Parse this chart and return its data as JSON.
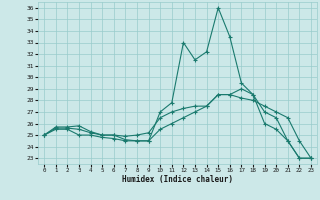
{
  "xlabel": "Humidex (Indice chaleur)",
  "bg_color": "#cce8e8",
  "grid_color": "#99cccc",
  "line_color": "#1a7a6e",
  "xlim": [
    -0.5,
    23.5
  ],
  "ylim": [
    22.5,
    36.5
  ],
  "yticks": [
    23,
    24,
    25,
    26,
    27,
    28,
    29,
    30,
    31,
    32,
    33,
    34,
    35,
    36
  ],
  "xticks": [
    0,
    1,
    2,
    3,
    4,
    5,
    6,
    7,
    8,
    9,
    10,
    11,
    12,
    13,
    14,
    15,
    16,
    17,
    18,
    19,
    20,
    21,
    22,
    23
  ],
  "line1_x": [
    0,
    1,
    2,
    3,
    4,
    5,
    6,
    7,
    8,
    9,
    10,
    11,
    12,
    13,
    14,
    15,
    16,
    17,
    18,
    19,
    20,
    21,
    22,
    23
  ],
  "line1_y": [
    25.0,
    25.6,
    25.6,
    25.5,
    25.2,
    25.0,
    25.0,
    24.9,
    25.0,
    25.2,
    26.5,
    27.0,
    27.3,
    27.5,
    27.5,
    28.5,
    28.5,
    28.2,
    28.0,
    27.5,
    27.0,
    26.5,
    24.5,
    23.0
  ],
  "line2_x": [
    0,
    1,
    2,
    3,
    4,
    5,
    6,
    7,
    8,
    9,
    10,
    11,
    12,
    13,
    14,
    15,
    16,
    17,
    18,
    19,
    20,
    21,
    22,
    23
  ],
  "line2_y": [
    25.0,
    25.7,
    25.7,
    25.8,
    25.3,
    25.0,
    25.0,
    24.6,
    24.5,
    24.5,
    27.0,
    27.8,
    33.0,
    31.5,
    32.2,
    36.0,
    33.5,
    29.5,
    28.5,
    26.0,
    25.5,
    24.5,
    23.0,
    23.0
  ],
  "line3_x": [
    0,
    1,
    2,
    3,
    4,
    5,
    6,
    7,
    8,
    9,
    10,
    11,
    12,
    13,
    14,
    15,
    16,
    17,
    18,
    19,
    20,
    21,
    22,
    23
  ],
  "line3_y": [
    25.0,
    25.5,
    25.5,
    25.0,
    25.0,
    24.8,
    24.7,
    24.5,
    24.5,
    24.5,
    25.5,
    26.0,
    26.5,
    27.0,
    27.5,
    28.5,
    28.5,
    29.0,
    28.5,
    27.0,
    26.5,
    24.5,
    23.0,
    23.0
  ]
}
